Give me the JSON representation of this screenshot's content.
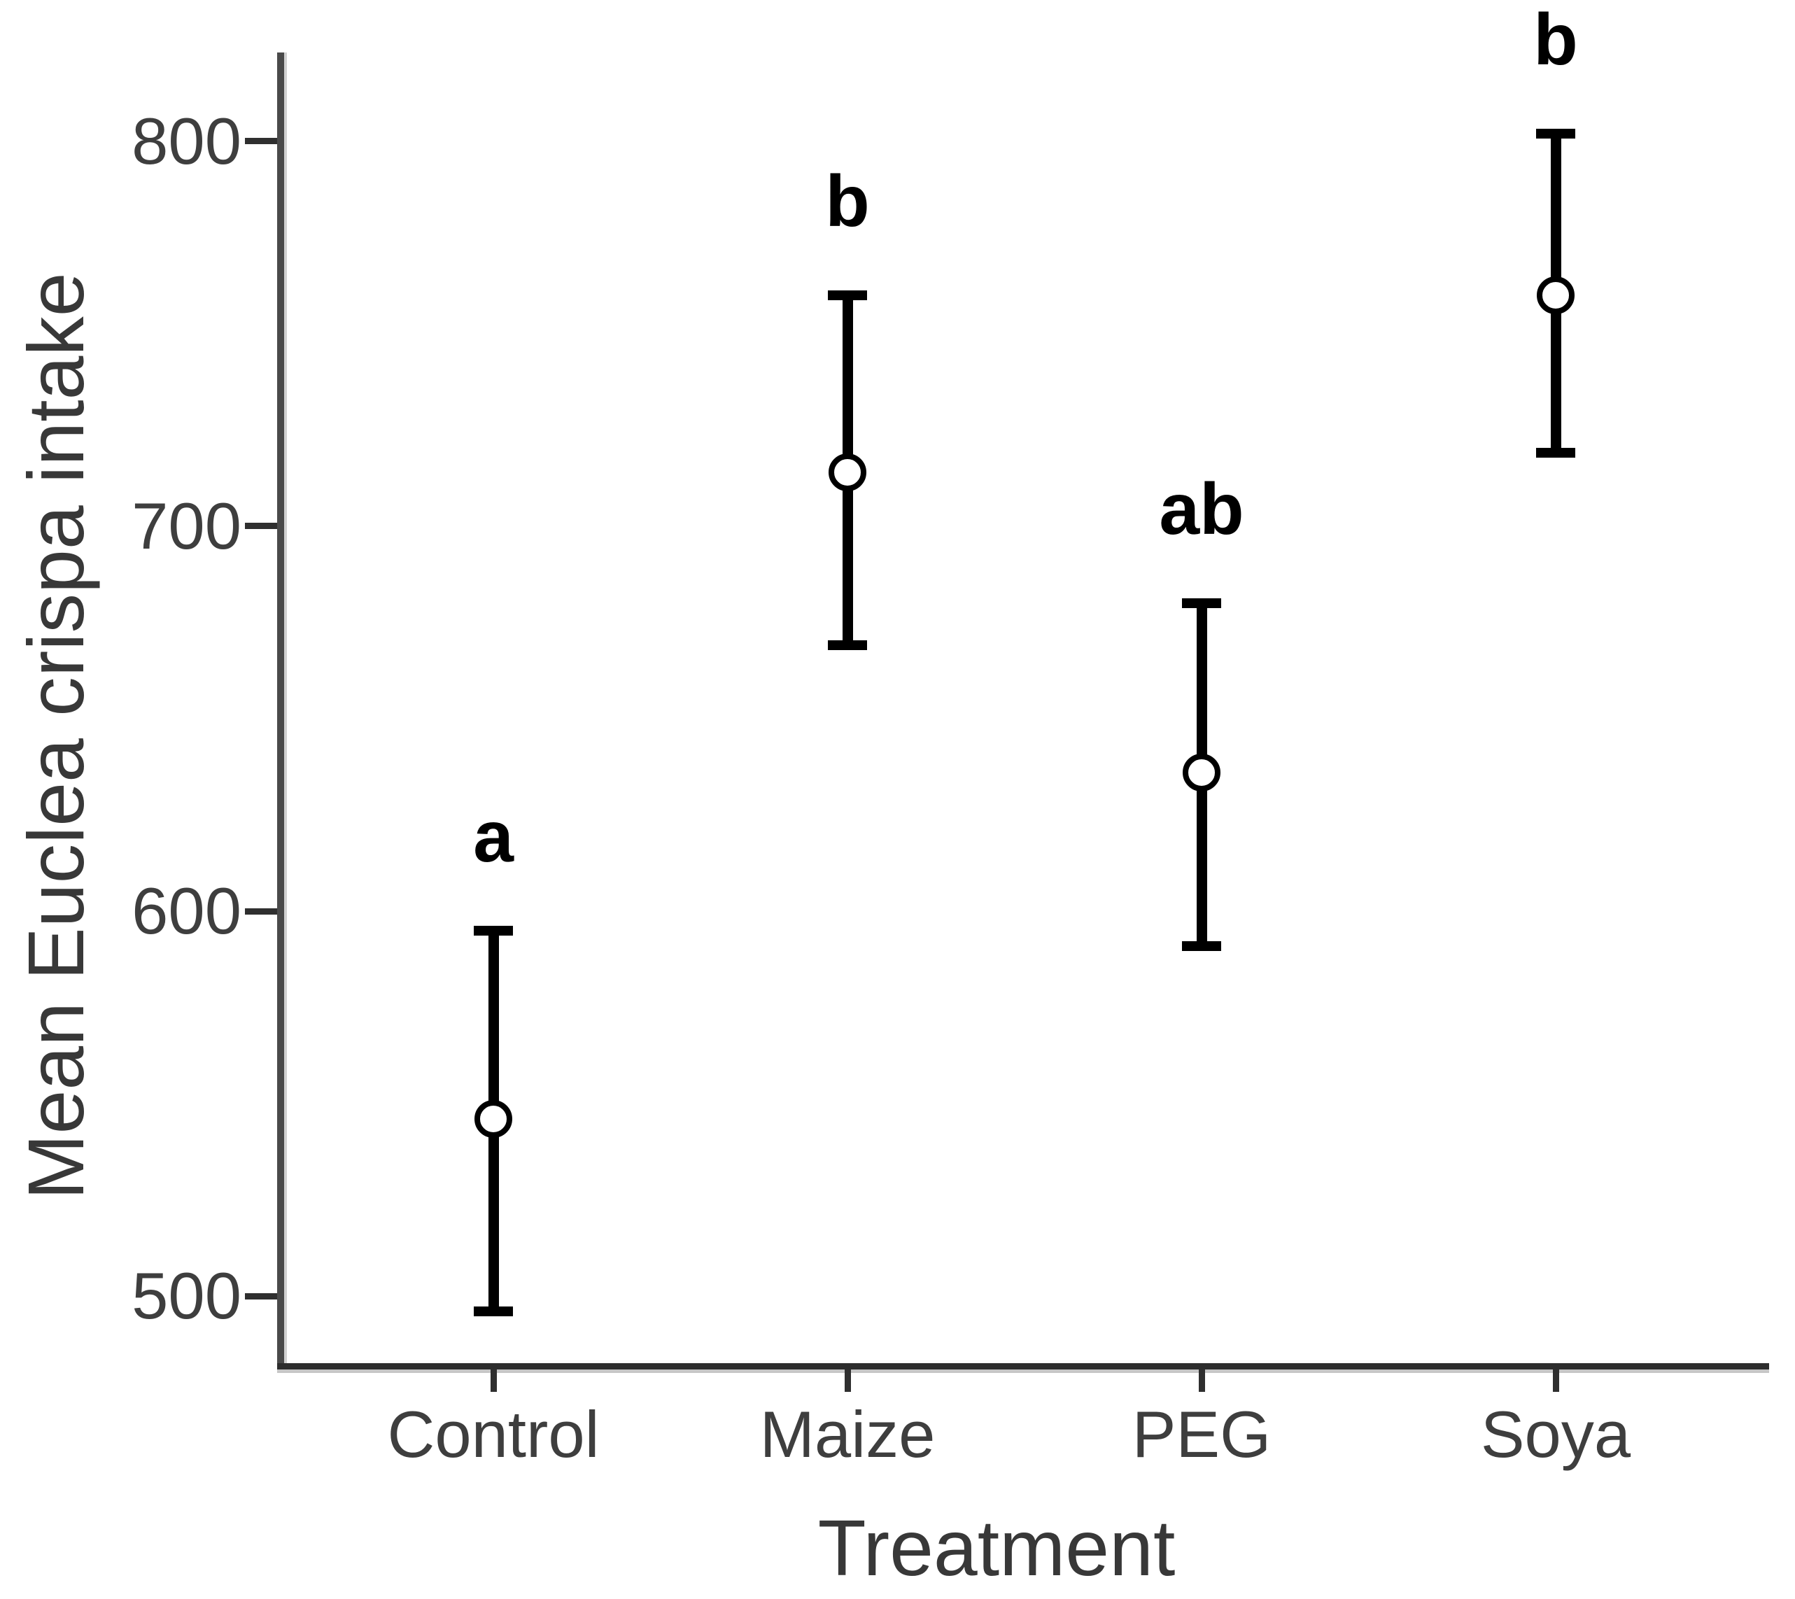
{
  "figure": {
    "background_color": "#ffffff"
  },
  "chart_data": {
    "type": "scatter",
    "subtype": "point-estimates-with-error-bars",
    "title": "",
    "xlabel": "Treatment",
    "ylabel": "Mean Euclea crispa intake",
    "categories": [
      "Control",
      "Maize",
      "PEG",
      "Soya"
    ],
    "points": [
      {
        "category": "Control",
        "mean": 546,
        "ci_low": 496,
        "ci_high": 595,
        "sig_letter": "a"
      },
      {
        "category": "Maize",
        "mean": 714,
        "ci_low": 669,
        "ci_high": 760,
        "sig_letter": "b"
      },
      {
        "category": "PEG",
        "mean": 636,
        "ci_low": 591,
        "ci_high": 680,
        "sig_letter": "ab"
      },
      {
        "category": "Soya",
        "mean": 760,
        "ci_low": 719,
        "ci_high": 802,
        "sig_letter": "b"
      }
    ],
    "yticks": [
      500,
      600,
      700,
      800
    ],
    "ylim": [
      481,
      823
    ],
    "grid": false,
    "legend": "none",
    "marker": "open-circle",
    "colors": {
      "marker_fill": "#ffffff",
      "marker_stroke": "#000000",
      "error_bar": "#000000",
      "axis_line": "#3a3a3a",
      "tick_text": "#3e3e3e",
      "axis_title_text": "#383838",
      "sig_letter": "#000000"
    }
  }
}
